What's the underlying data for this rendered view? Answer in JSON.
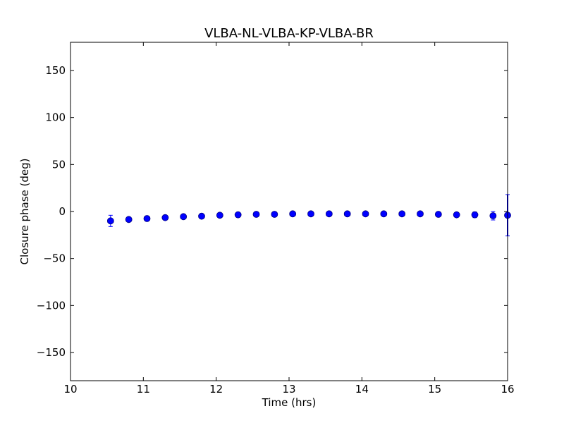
{
  "chart_data": {
    "type": "scatter",
    "title": "VLBA-NL-VLBA-KP-VLBA-BR",
    "xlabel": "Time (hrs)",
    "ylabel": "Closure phase (deg)",
    "xlim": [
      10,
      16
    ],
    "ylim": [
      -180,
      180
    ],
    "xticks": [
      10,
      11,
      12,
      13,
      14,
      15,
      16
    ],
    "xtick_labels": [
      "10",
      "11",
      "12",
      "13",
      "14",
      "15",
      "16"
    ],
    "yticks": [
      150,
      100,
      50,
      0,
      -50,
      -100,
      -150
    ],
    "ytick_labels": [
      "150",
      "100",
      "50",
      "0",
      "−50",
      "−100",
      "−150"
    ],
    "grid": false,
    "marker_color": "#0000ff",
    "series": [
      {
        "x": [
          10.55,
          10.8,
          11.05,
          11.3,
          11.55,
          11.8,
          12.05,
          12.3,
          12.55,
          12.8,
          13.05,
          13.3,
          13.55,
          13.8,
          14.05,
          14.3,
          14.55,
          14.8,
          15.05,
          15.3,
          15.55,
          15.8,
          16.0
        ],
        "y": [
          -10,
          -8.5,
          -7.5,
          -6.5,
          -5.5,
          -5,
          -4,
          -3.5,
          -3,
          -3,
          -2.5,
          -2.5,
          -2.5,
          -2.5,
          -2.5,
          -2.5,
          -2.5,
          -2.5,
          -3,
          -3.5,
          -3.5,
          -4.5,
          -4
        ],
        "yerr": [
          6,
          2,
          2,
          1.5,
          1.5,
          1.5,
          1.5,
          1.5,
          1.5,
          1.5,
          1.5,
          1.5,
          1.5,
          1.5,
          1.5,
          1.5,
          1.5,
          1.5,
          1.5,
          2,
          3,
          4.5,
          22
        ]
      }
    ]
  }
}
